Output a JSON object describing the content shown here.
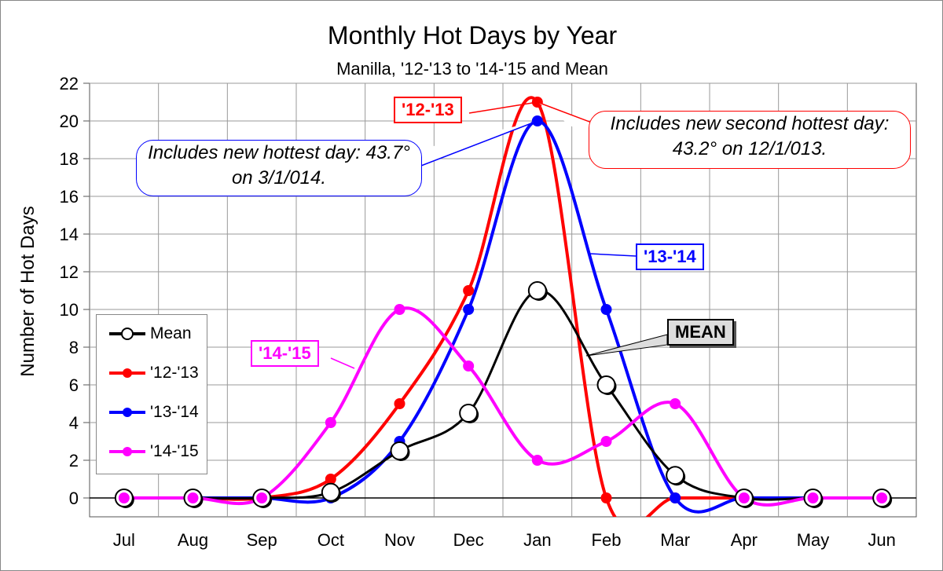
{
  "chart_data": {
    "type": "line",
    "title": "Monthly Hot Days by Year",
    "subtitle": "Manilla, '12-'13 to '14-'15 and Mean",
    "xlabel": "",
    "ylabel": "Number of Hot Days",
    "categories": [
      "Jul",
      "Aug",
      "Sep",
      "Oct",
      "Nov",
      "Dec",
      "Jan",
      "Feb",
      "Mar",
      "Apr",
      "May",
      "Jun"
    ],
    "ylim": [
      -1,
      22
    ],
    "yticks": [
      0,
      2,
      4,
      6,
      8,
      10,
      12,
      14,
      16,
      18,
      20,
      22
    ],
    "grid": true,
    "legend_position": "bottom-left",
    "series": [
      {
        "name": "Mean",
        "color": "#000000",
        "values": [
          0,
          0,
          0,
          0.3,
          2.5,
          4.5,
          11,
          6,
          1.2,
          0,
          0,
          0
        ]
      },
      {
        "name": "'12-'13",
        "color": "#ff0000",
        "values": [
          0,
          0,
          0,
          1,
          5,
          11,
          21,
          0,
          0,
          0,
          0,
          0
        ]
      },
      {
        "name": "'13-'14",
        "color": "#0000ff",
        "values": [
          0,
          0,
          0,
          0,
          3,
          10,
          20,
          10,
          0,
          0,
          0,
          0
        ]
      },
      {
        "name": "'14-'15",
        "color": "#ff00ff",
        "values": [
          0,
          0,
          0,
          4,
          10,
          7,
          2,
          3,
          5,
          0,
          0,
          0
        ]
      }
    ],
    "annotations": {
      "hottest": "Includes new hottest day: 43.7° on 3/1/014.",
      "second": "Includes new second hottest day: 43.2° on 12/1/013.",
      "tag_1213": "'12-'13",
      "tag_1314": "'13-'14",
      "tag_1415": "'14-'15",
      "tag_mean": "MEAN"
    }
  }
}
